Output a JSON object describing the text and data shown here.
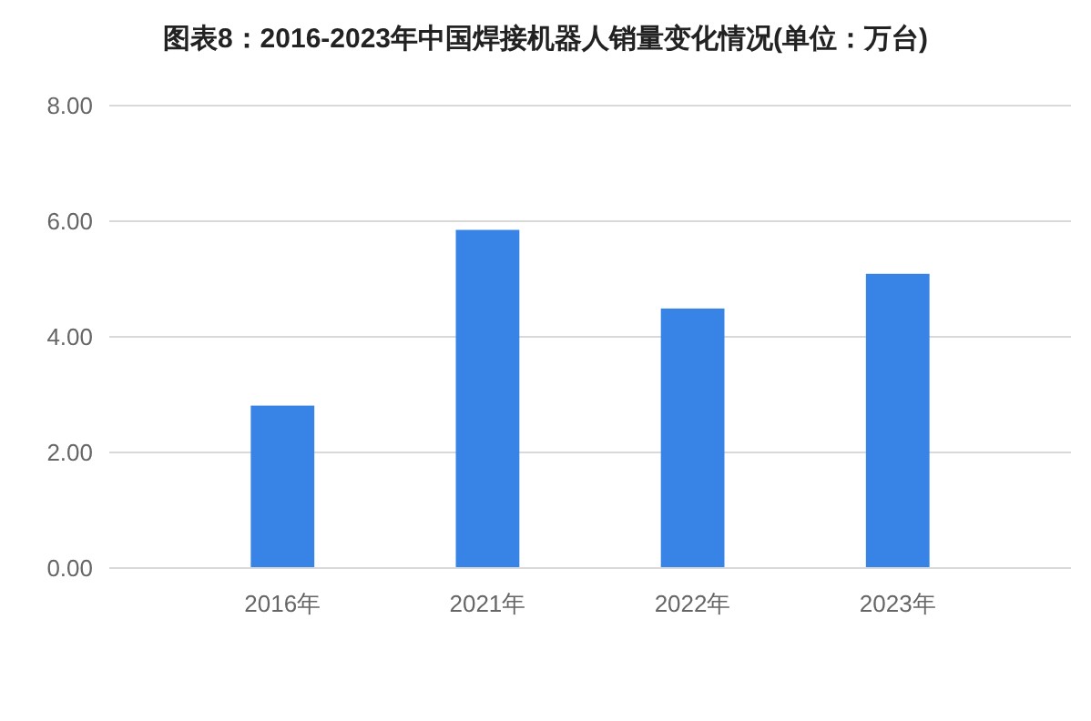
{
  "chart_data": {
    "type": "bar",
    "title": "图表8：2016-2023年中国焊接机器人销量变化情况(单位：万台)",
    "categories": [
      "2016年",
      "2021年",
      "2022年",
      "2023年"
    ],
    "values": [
      2.81,
      5.85,
      4.49,
      5.09
    ],
    "color": "#3784e6",
    "ylim": [
      0,
      8
    ],
    "yticks": [
      {
        "value": 0,
        "label": "0.00"
      },
      {
        "value": 2,
        "label": "2.00"
      },
      {
        "value": 4,
        "label": "4.00"
      },
      {
        "value": 6,
        "label": "6.00"
      },
      {
        "value": 8,
        "label": "8.00"
      }
    ],
    "grid": "y"
  }
}
